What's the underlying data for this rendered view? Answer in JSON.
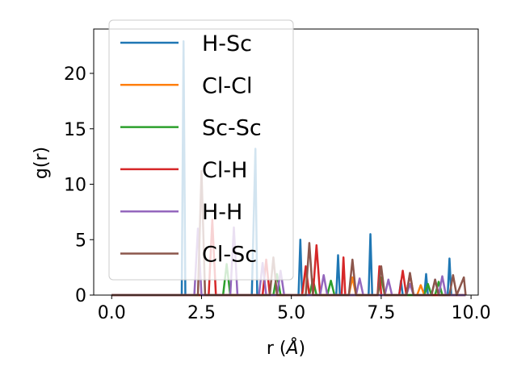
{
  "chart_data": {
    "type": "line",
    "xlabel_main": "r (",
    "xlabel_unit": "Å",
    "xlabel_close": ")",
    "ylabel": "g(r)",
    "xlim": [
      -0.5,
      10.2
    ],
    "ylim": [
      0,
      24
    ],
    "xticks": [
      0.0,
      2.5,
      5.0,
      7.5,
      10.0
    ],
    "xtick_labels": [
      "0.0",
      "2.5",
      "5.0",
      "7.5",
      "10.0"
    ],
    "yticks": [
      0,
      5,
      10,
      15,
      20
    ],
    "ytick_labels": [
      "0",
      "5",
      "10",
      "15",
      "20"
    ],
    "grid": false,
    "legend_position": "top-left",
    "series": [
      {
        "name": "H-Sc",
        "color": "#1f77b4",
        "x": [
          0.0,
          1.9,
          1.95,
          2.0,
          2.05,
          2.1,
          2.2,
          3.85,
          3.9,
          4.0,
          4.05,
          4.1,
          4.2,
          5.15,
          5.2,
          5.25,
          5.3,
          5.35,
          6.25,
          6.3,
          6.35,
          6.4,
          7.1,
          7.15,
          7.2,
          7.25,
          7.3,
          7.8,
          8.0,
          8.05,
          8.1,
          8.7,
          8.75,
          8.8,
          9.3,
          9.35,
          9.4,
          9.45,
          9.85
        ],
        "y": [
          0,
          0,
          0,
          22.9,
          0,
          0,
          0,
          0,
          0,
          13.2,
          0,
          0,
          0,
          0,
          0,
          5.0,
          0,
          0,
          0,
          3.6,
          0,
          0,
          0,
          0,
          5.5,
          0,
          0,
          0,
          0,
          1.3,
          0,
          0,
          1.9,
          0,
          0,
          0,
          3.3,
          0,
          0
        ]
      },
      {
        "name": "Cl-Cl",
        "color": "#ff7f0e",
        "x": [
          0.0,
          5.3,
          5.4,
          5.5,
          5.6,
          6.6,
          6.7,
          6.8,
          8.5,
          8.6,
          8.7,
          9.85
        ],
        "y": [
          0,
          0,
          2.3,
          0,
          0,
          0,
          1.6,
          0,
          0,
          0.9,
          0,
          0
        ]
      },
      {
        "name": "Sc-Sc",
        "color": "#2ca02c",
        "x": [
          0.0,
          3.1,
          3.2,
          3.3,
          3.4,
          4.5,
          4.6,
          4.7,
          5.5,
          5.6,
          5.7,
          6.0,
          6.1,
          6.2,
          7.4,
          7.5,
          7.6,
          8.7,
          8.8,
          8.9,
          9.0,
          9.1,
          9.2,
          9.85
        ],
        "y": [
          0,
          0,
          2.8,
          0,
          0,
          0,
          1.9,
          0,
          0,
          1.4,
          0,
          0,
          1.3,
          0,
          0,
          1.6,
          0,
          0,
          1.0,
          0,
          0,
          1.2,
          0,
          0
        ]
      },
      {
        "name": "Cl-H",
        "color": "#d62728",
        "x": [
          0.0,
          2.7,
          2.8,
          2.9,
          3.0,
          4.2,
          4.3,
          4.4,
          4.5,
          5.3,
          5.4,
          5.5,
          5.6,
          5.7,
          5.8,
          6.4,
          6.45,
          6.5,
          7.4,
          7.45,
          7.5,
          8.0,
          8.1,
          8.2,
          8.3,
          8.4,
          9.85
        ],
        "y": [
          0,
          0,
          6.8,
          0,
          0,
          0,
          3.2,
          0,
          0,
          0,
          2.6,
          0,
          0,
          4.5,
          0,
          0,
          3.4,
          0,
          0,
          2.6,
          0,
          0,
          2.2,
          0,
          1.9,
          0,
          0
        ]
      },
      {
        "name": "H-H",
        "color": "#9467bd",
        "x": [
          0.0,
          2.3,
          2.4,
          2.5,
          2.6,
          3.3,
          3.4,
          3.5,
          3.6,
          4.1,
          4.2,
          4.3,
          4.4,
          4.6,
          4.7,
          4.8,
          5.8,
          5.9,
          6.0,
          6.1,
          6.8,
          6.9,
          7.0,
          7.6,
          7.7,
          7.8,
          8.2,
          8.3,
          8.4,
          8.9,
          9.0,
          9.1,
          9.2,
          9.3,
          9.85
        ],
        "y": [
          0,
          0,
          6.0,
          0,
          0,
          0,
          6.1,
          0,
          0,
          0,
          2.9,
          0,
          0,
          0,
          2.2,
          0,
          0,
          1.8,
          0,
          0,
          0,
          1.5,
          0,
          0,
          1.4,
          0,
          0,
          1.0,
          0,
          0,
          1.4,
          0,
          1.7,
          0,
          0
        ]
      },
      {
        "name": "Cl-Sc",
        "color": "#8c564b",
        "x": [
          0.0,
          2.4,
          2.5,
          2.6,
          2.7,
          4.4,
          4.5,
          4.6,
          5.4,
          5.5,
          5.6,
          6.6,
          6.7,
          6.8,
          7.4,
          7.5,
          7.6,
          8.2,
          8.3,
          8.4,
          8.9,
          9.0,
          9.1,
          9.4,
          9.5,
          9.6,
          9.8,
          9.85
        ],
        "y": [
          0,
          0,
          11.2,
          0,
          0,
          0,
          3.4,
          0,
          0,
          4.7,
          0,
          0,
          3.2,
          0,
          0,
          2.6,
          0,
          0,
          2.0,
          0,
          0,
          1.4,
          0,
          0,
          1.8,
          0,
          1.6,
          0
        ]
      }
    ]
  }
}
